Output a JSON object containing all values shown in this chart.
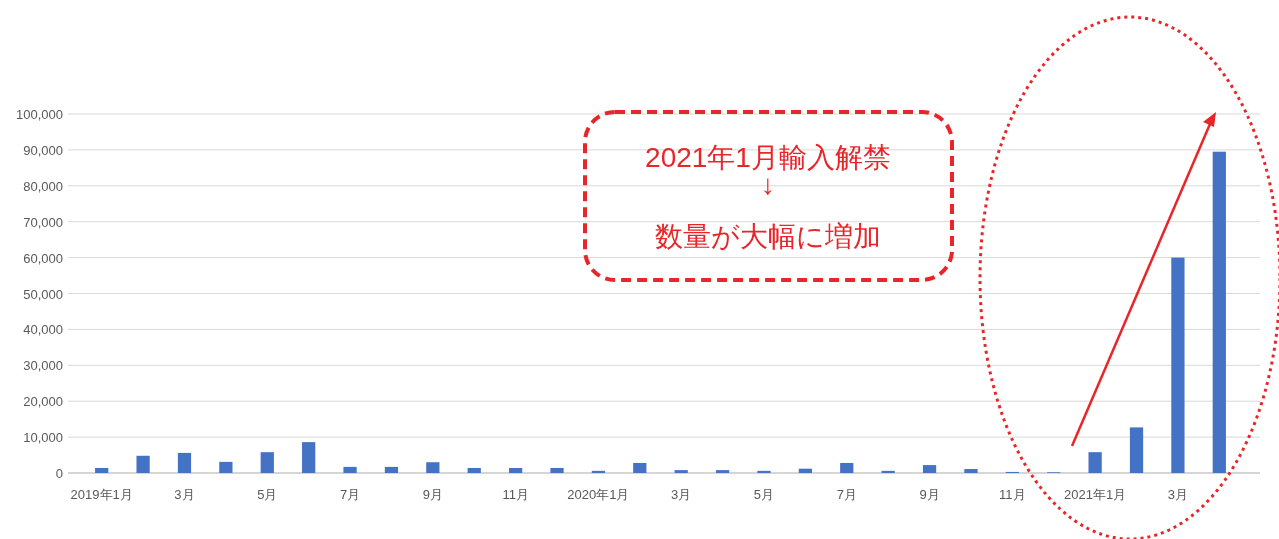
{
  "chart_data": {
    "type": "bar",
    "categories": [
      "2019年1月",
      null,
      "3月",
      null,
      "5月",
      null,
      "7月",
      null,
      "9月",
      null,
      "11月",
      null,
      "2020年1月",
      null,
      "3月",
      null,
      "5月",
      null,
      "7月",
      null,
      "9月",
      null,
      "11月",
      null,
      "2021年1月",
      null,
      "3月",
      null
    ],
    "values": [
      1400,
      4800,
      5600,
      3100,
      5800,
      8600,
      1700,
      1700,
      3000,
      1400,
      1400,
      1400,
      600,
      2800,
      800,
      800,
      600,
      1200,
      2800,
      600,
      2200,
      1100,
      300,
      200,
      5800,
      12700,
      60000,
      89500
    ],
    "color": "#4472c4",
    "ylim": [
      0,
      100000
    ],
    "yticks": [
      {
        "value": 0,
        "label": "0"
      },
      {
        "value": 10000,
        "label": "10,000"
      },
      {
        "value": 20000,
        "label": "20,000"
      },
      {
        "value": 30000,
        "label": "30,000"
      },
      {
        "value": 40000,
        "label": "40,000"
      },
      {
        "value": 50000,
        "label": "50,000"
      },
      {
        "value": 60000,
        "label": "60,000"
      },
      {
        "value": 70000,
        "label": "70,000"
      },
      {
        "value": 80000,
        "label": "80,000"
      },
      {
        "value": 90000,
        "label": "90,000"
      },
      {
        "value": 100000,
        "label": "100,000"
      }
    ],
    "grid": "y",
    "annotations": [
      "2021年1月輸入解禁\n↓\n数量が大幅に増加"
    ]
  }
}
